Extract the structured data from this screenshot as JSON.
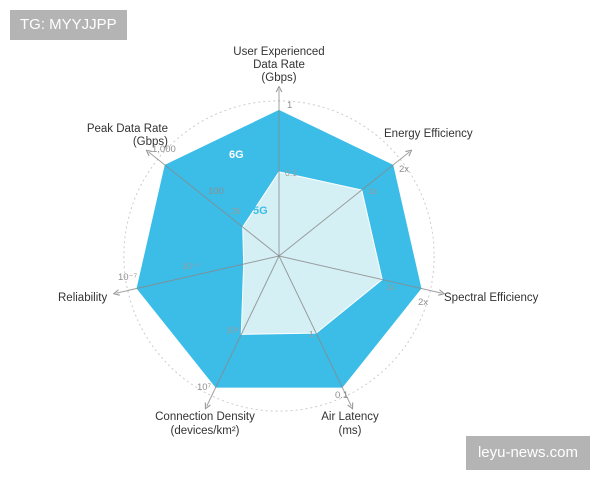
{
  "watermark_top": "TG: MYYJJPP",
  "watermark_bottom": "leyu-news.com",
  "colors": {
    "series_6g": "#3bbde8",
    "series_5g": "#d5f0f5",
    "series_5g_label": "#3bbde8",
    "series_6g_label": "#ffffff",
    "axis": "#888888",
    "grid": "#cccccc"
  },
  "chart_data": {
    "type": "radar",
    "title": "",
    "axes": [
      {
        "name": "User Experienced Data Rate (Gbps)",
        "label_lines": [
          "User Experienced",
          "Data Rate",
          "(Gbps)"
        ],
        "ticks_5g": "0.1",
        "ticks_6g": "1"
      },
      {
        "name": "Energy Efficiency",
        "label_lines": [
          "Energy Efficiency"
        ],
        "ticks_5g": "1x",
        "ticks_6g": "2x"
      },
      {
        "name": "Spectral Efficiency",
        "label_lines": [
          "Spectral Efficiency"
        ],
        "ticks_5g": "1x",
        "ticks_6g": "2x"
      },
      {
        "name": "Air Latency (ms)",
        "label_lines": [
          "Air Latency",
          "(ms)"
        ],
        "ticks_5g": "1",
        "ticks_6g": "0.1"
      },
      {
        "name": "Connection Density (devices/km²)",
        "label_lines": [
          "Connection Density",
          "(devices/km²)"
        ],
        "ticks_5g": "10⁶",
        "ticks_6g": "10⁷"
      },
      {
        "name": "Reliability",
        "label_lines": [
          "Reliability"
        ],
        "ticks_5g": "10⁻⁵",
        "ticks_6g": "10⁻⁷"
      },
      {
        "name": "Peak Data Rate (Gbps)",
        "label_lines": [
          "Peak Data Rate",
          "(Gbps)"
        ],
        "ticks_5g": "20",
        "ticks_mid": "100",
        "ticks_6g": "1,000"
      }
    ],
    "series": [
      {
        "name": "6G",
        "values": [
          "1",
          "2x",
          "2x",
          "0.1",
          "10⁷",
          "10⁻⁷",
          "1,000"
        ],
        "relative": [
          1.0,
          1.0,
          1.0,
          1.0,
          1.0,
          1.0,
          1.0
        ]
      },
      {
        "name": "5G",
        "values": [
          "0.1",
          "1x",
          "1x",
          "1",
          "10⁶",
          "10⁻⁵",
          "20"
        ],
        "relative": [
          0.58,
          0.73,
          0.73,
          0.59,
          0.6,
          0.25,
          0.32
        ]
      }
    ],
    "grid": true
  }
}
